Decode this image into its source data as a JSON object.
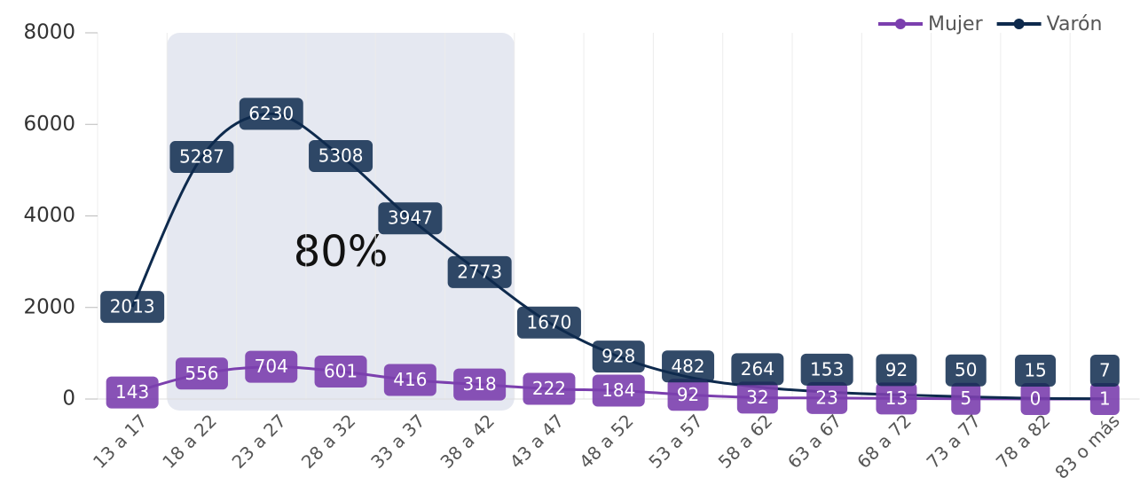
{
  "chart_data": {
    "type": "line",
    "categories": [
      "13 a 17",
      "18 a 22",
      "23 a 27",
      "28 a 32",
      "33 a 37",
      "38 a 42",
      "43 a 47",
      "48 a 52",
      "53 a 57",
      "58 a 62",
      "63 a 67",
      "68 a 72",
      "73 a 77",
      "78 a 82",
      "83 o más"
    ],
    "series": [
      {
        "name": "Mujer",
        "color": "#7b3fae",
        "values": [
          143,
          556,
          704,
          601,
          416,
          318,
          222,
          184,
          92,
          32,
          23,
          13,
          5,
          0,
          1
        ]
      },
      {
        "name": "Varón",
        "color": "#0e2a4d",
        "values": [
          2013,
          5287,
          6230,
          5308,
          3947,
          2773,
          1670,
          928,
          482,
          264,
          153,
          92,
          50,
          15,
          7
        ]
      }
    ],
    "annotation": "80%",
    "ylim": [
      0,
      8000
    ],
    "yticks": [
      0,
      2000,
      4000,
      6000,
      8000
    ],
    "legend": "top-right"
  }
}
